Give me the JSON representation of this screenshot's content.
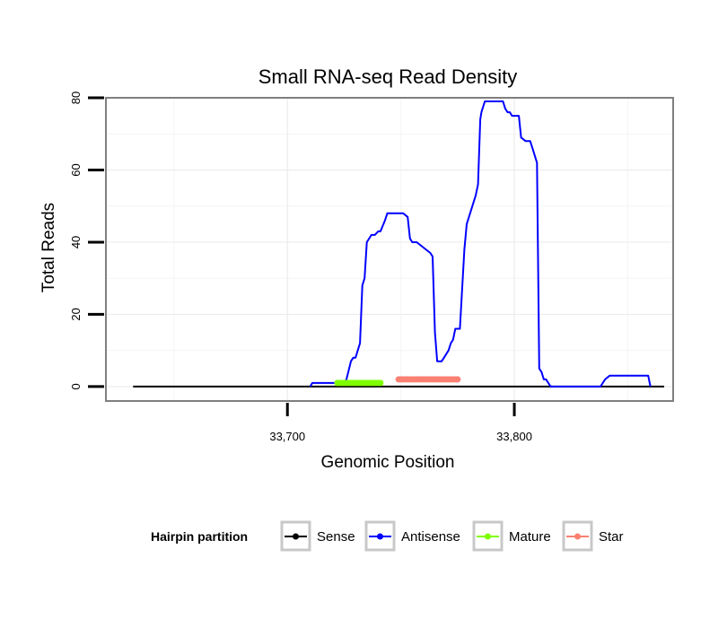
{
  "chart_data": {
    "type": "line",
    "title": "Small RNA-seq Read Density",
    "xlabel": "Genomic Position",
    "ylabel": "Total Reads",
    "xlim": [
      33620,
      33870
    ],
    "ylim": [
      -4,
      80
    ],
    "x_ticks": [
      33700,
      33800
    ],
    "x_tick_labels": [
      "33,700",
      "33,800"
    ],
    "y_ticks": [
      0,
      20,
      40,
      60,
      80
    ],
    "y_tick_labels": [
      "0",
      "20",
      "40",
      "60",
      "80"
    ],
    "grid": true,
    "legend": {
      "title": "Hairpin partition",
      "position": "bottom",
      "entries": [
        {
          "name": "Sense",
          "color": "#000000"
        },
        {
          "name": "Antisense",
          "color": "#0000ff"
        },
        {
          "name": "Mature",
          "color": "#7fff00"
        },
        {
          "name": "Star",
          "color": "#fa8072"
        }
      ]
    },
    "series": [
      {
        "name": "Sense",
        "color": "#000000",
        "style": "line",
        "x": [
          33632,
          33866
        ],
        "y": [
          0,
          0
        ]
      },
      {
        "name": "Antisense",
        "color": "#0000ff",
        "style": "line",
        "x": [
          33710,
          33711,
          33725,
          33726,
          33728,
          33729,
          33730,
          33732,
          33733,
          33734,
          33735,
          33737,
          33738,
          33738.5,
          33740,
          33741,
          33743,
          33744,
          33745,
          33747,
          33749,
          33751,
          33753,
          33754,
          33755,
          33757,
          33761,
          33763,
          33764,
          33765,
          33766,
          33767,
          33768,
          33769,
          33771,
          33772,
          33773,
          33774,
          33775,
          33776,
          33778,
          33779,
          33783,
          33784,
          33785,
          33785.5,
          33787,
          33788,
          33789,
          33790,
          33791,
          33795,
          33796,
          33797,
          33798,
          33799,
          33801,
          33802,
          33803,
          33805,
          33806,
          33807,
          33808,
          33810,
          33811,
          33812,
          33813,
          33814,
          33815,
          33816,
          33817,
          33838,
          33839,
          33840,
          33842,
          33858,
          33859,
          33860
        ],
        "y": [
          0,
          1,
          1,
          2,
          7,
          8,
          8,
          12,
          28,
          30,
          40,
          42,
          42,
          42,
          43,
          43,
          46,
          48,
          48,
          48,
          48,
          48,
          47,
          41,
          40,
          40,
          38,
          37,
          36,
          15,
          7,
          7,
          7,
          8,
          10,
          12,
          13,
          16,
          16,
          16,
          38,
          45,
          53,
          56,
          74,
          76,
          79,
          79,
          79,
          79,
          79,
          79,
          77,
          76,
          76,
          75,
          75,
          75,
          69,
          68,
          68,
          68,
          66,
          62,
          5,
          4,
          2,
          2,
          1,
          0,
          0,
          0,
          1,
          2,
          3,
          3,
          3,
          0
        ]
      },
      {
        "name": "Mature",
        "color": "#7fff00",
        "style": "points",
        "x_start": 33722,
        "x_end": 33741,
        "y": 1
      },
      {
        "name": "Star",
        "color": "#fa8072",
        "style": "points",
        "x_start": 33749,
        "x_end": 33775,
        "y": 2
      }
    ]
  }
}
